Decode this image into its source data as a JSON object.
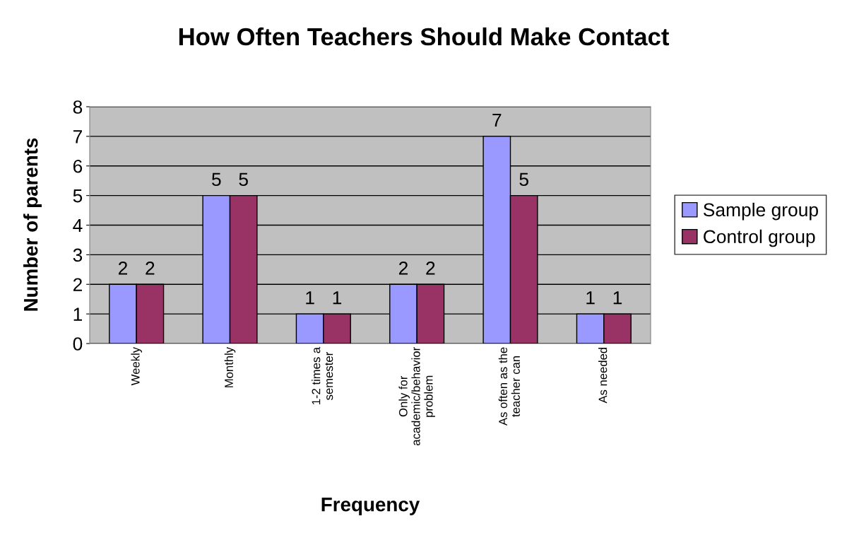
{
  "chart_data": {
    "type": "bar",
    "title": "How Often Teachers Should Make Contact",
    "xlabel": "Frequency",
    "ylabel": "Number of parents",
    "categories": [
      "Weekly",
      "Monthly",
      "1-2 times a\nsemester",
      "Only for\nacademic/behavior\nproblem",
      "As often as the\nteacher can",
      "As needed"
    ],
    "series": [
      {
        "name": "Sample group",
        "color": "#9999ff",
        "values": [
          2,
          5,
          1,
          2,
          7,
          1
        ]
      },
      {
        "name": "Control group",
        "color": "#993366",
        "values": [
          2,
          5,
          1,
          2,
          5,
          1
        ]
      }
    ],
    "ylim": [
      0,
      8
    ],
    "yticks": [
      0,
      1,
      2,
      3,
      4,
      5,
      6,
      7,
      8
    ],
    "grid": "y",
    "legend": "right",
    "data_labels": true
  }
}
